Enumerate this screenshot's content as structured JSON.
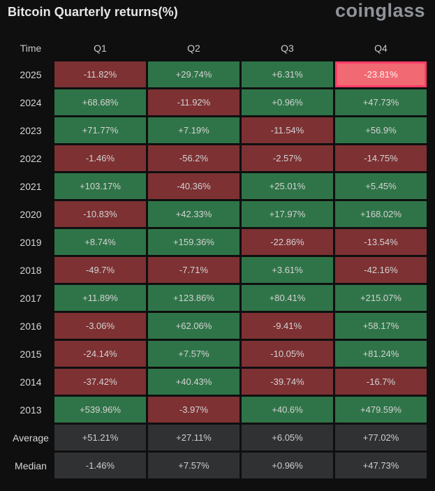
{
  "header": {
    "title": "Bitcoin Quarterly returns(%)",
    "brand": "coinglass"
  },
  "colors": {
    "positive": "#2f7448",
    "negative": "#7d3133",
    "stat": "#303133",
    "highlight": "#f16a73",
    "highlight_border": "#ff3d68"
  },
  "chart_data": {
    "type": "table",
    "title": "Bitcoin Quarterly returns(%)",
    "corner_label": "Time",
    "columns": [
      "Q1",
      "Q2",
      "Q3",
      "Q4"
    ],
    "rows": [
      {
        "label": "2025",
        "values": [
          "-11.82%",
          "+29.74%",
          "+6.31%",
          "-23.81%"
        ],
        "highlight": 3
      },
      {
        "label": "2024",
        "values": [
          "+68.68%",
          "-11.92%",
          "+0.96%",
          "+47.73%"
        ]
      },
      {
        "label": "2023",
        "values": [
          "+71.77%",
          "+7.19%",
          "-11.54%",
          "+56.9%"
        ]
      },
      {
        "label": "2022",
        "values": [
          "-1.46%",
          "-56.2%",
          "-2.57%",
          "-14.75%"
        ]
      },
      {
        "label": "2021",
        "values": [
          "+103.17%",
          "-40.36%",
          "+25.01%",
          "+5.45%"
        ]
      },
      {
        "label": "2020",
        "values": [
          "-10.83%",
          "+42.33%",
          "+17.97%",
          "+168.02%"
        ]
      },
      {
        "label": "2019",
        "values": [
          "+8.74%",
          "+159.36%",
          "-22.86%",
          "-13.54%"
        ]
      },
      {
        "label": "2018",
        "values": [
          "-49.7%",
          "-7.71%",
          "+3.61%",
          "-42.16%"
        ]
      },
      {
        "label": "2017",
        "values": [
          "+11.89%",
          "+123.86%",
          "+80.41%",
          "+215.07%"
        ]
      },
      {
        "label": "2016",
        "values": [
          "-3.06%",
          "+62.06%",
          "-9.41%",
          "+58.17%"
        ]
      },
      {
        "label": "2015",
        "values": [
          "-24.14%",
          "+7.57%",
          "-10.05%",
          "+81.24%"
        ]
      },
      {
        "label": "2014",
        "values": [
          "-37.42%",
          "+40.43%",
          "-39.74%",
          "-16.7%"
        ]
      },
      {
        "label": "2013",
        "values": [
          "+539.96%",
          "-3.97%",
          "+40.6%",
          "+479.59%"
        ]
      }
    ],
    "summary": [
      {
        "label": "Average",
        "values": [
          "+51.21%",
          "+27.11%",
          "+6.05%",
          "+77.02%"
        ]
      },
      {
        "label": "Median",
        "values": [
          "-1.46%",
          "+7.57%",
          "+0.96%",
          "+47.73%"
        ]
      }
    ]
  }
}
